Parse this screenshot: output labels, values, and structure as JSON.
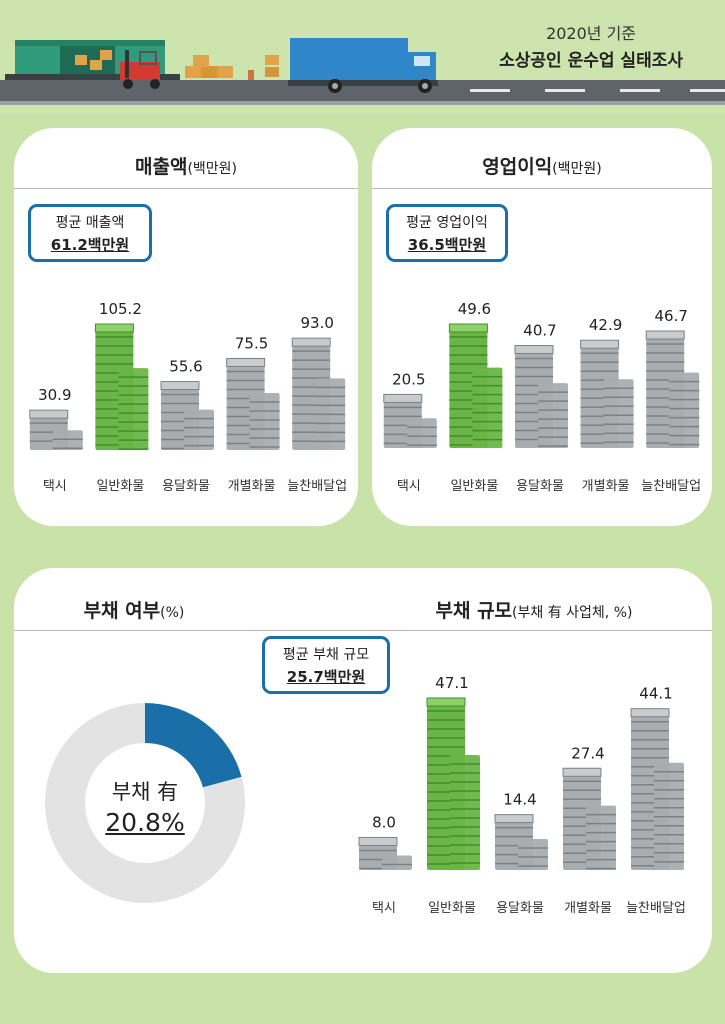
{
  "header": {
    "year": "2020년 기준",
    "name": "소상공인 운수업 실태조사"
  },
  "colors": {
    "background": "#c8e2a8",
    "money_green": "#6bb548",
    "money_gray": "#a9adb0",
    "accent_blue": "#1a6fa8",
    "donut_gray": "#e3e3e3"
  },
  "sales": {
    "title": "매출액",
    "unit": "(백만원)",
    "avg_label": "평균 매출액",
    "avg_value": "61.2백만원"
  },
  "profit": {
    "title": "영업이익",
    "unit": "(백만원)",
    "avg_label": "평균 영업이익",
    "avg_value": "36.5백만원"
  },
  "debt": {
    "title": "부채 여부",
    "unit": "(%)",
    "center_label": "부채 有",
    "center_value": "20.8%"
  },
  "debt_size": {
    "title": "부채 규모",
    "unit": "(부채 有 사업체, %)",
    "avg_label": "평균 부채 규모",
    "avg_value": "25.7백만원"
  },
  "chart_data": [
    {
      "type": "bar",
      "title": "매출액(백만원)",
      "categories": [
        "택시",
        "일반화물",
        "용달화물",
        "개별화물",
        "늘찬배달업"
      ],
      "values": [
        30.9,
        105.2,
        55.6,
        75.5,
        93.0
      ],
      "value_labels": [
        "30.9",
        "105.2",
        "55.6",
        "75.5",
        "93.0"
      ],
      "highlight_index": 1
    },
    {
      "type": "bar",
      "title": "영업이익(백만원)",
      "categories": [
        "택시",
        "일반화물",
        "용달화물",
        "개별화물",
        "늘찬배달업"
      ],
      "values": [
        20.5,
        49.6,
        40.7,
        42.9,
        46.7
      ],
      "value_labels": [
        "20.5",
        "49.6",
        "40.7",
        "42.9",
        "46.7"
      ],
      "highlight_index": 1
    },
    {
      "type": "pie",
      "title": "부채 여부(%)",
      "slices": [
        {
          "label": "부채 有",
          "value": 20.8,
          "color": "#1a6fa8"
        },
        {
          "value": 79.2,
          "color": "#e3e3e3"
        }
      ]
    },
    {
      "type": "bar",
      "title": "부채 규모(부채 有 사업체, %)",
      "categories": [
        "택시",
        "일반화물",
        "용달화물",
        "개별화물",
        "늘찬배달업"
      ],
      "values": [
        8.0,
        47.1,
        14.4,
        27.4,
        44.1
      ],
      "value_labels": [
        "8.0",
        "47.1",
        "14.4",
        "27.4",
        "44.1"
      ],
      "highlight_index": 1
    }
  ]
}
